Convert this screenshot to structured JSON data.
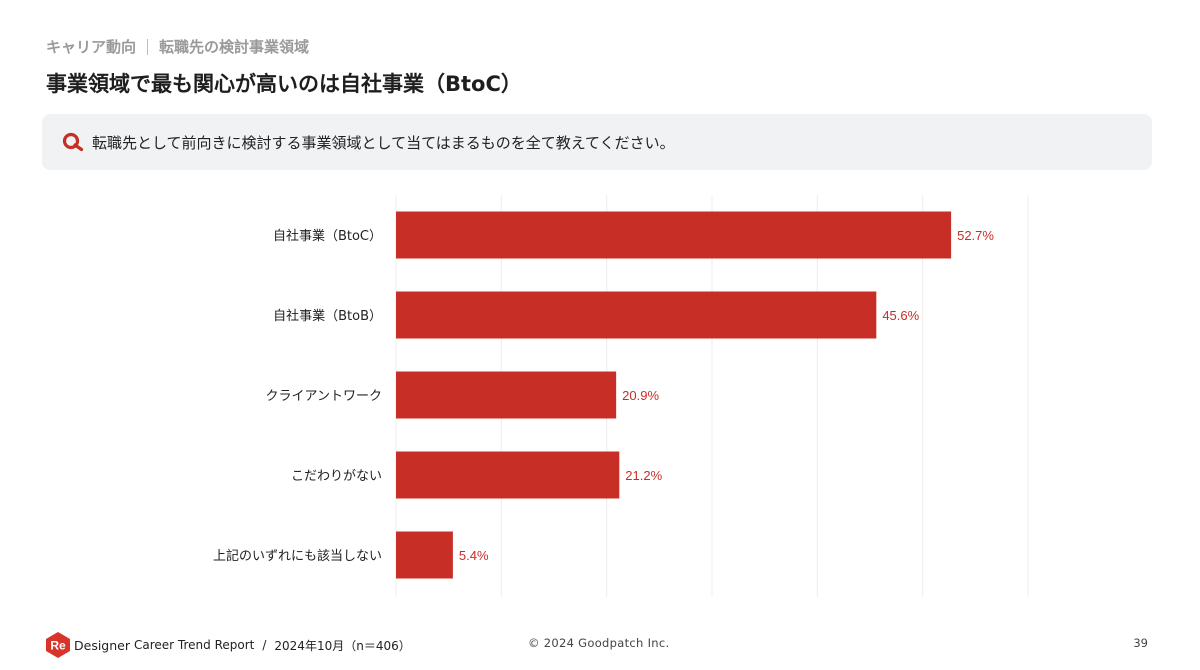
{
  "header": {
    "breadcrumb_section": "キャリア動向",
    "breadcrumb_topic": "転職先の検討事業領域",
    "title": "事業領域で最も関心が高いのは自社事業（BtoC）"
  },
  "question": {
    "text": "転職先として前向きに検討する事業領域として当てはまるものを全て教えてください。"
  },
  "chart_data": {
    "type": "bar",
    "orientation": "horizontal",
    "categories": [
      "自社事業（BtoC）",
      "自社事業（BtoB）",
      "クライアントワーク",
      "こだわりがない",
      "上記のいずれにも該当しない"
    ],
    "values": [
      52.7,
      45.6,
      20.9,
      21.2,
      5.4
    ],
    "value_labels": [
      "52.7%",
      "45.6%",
      "20.9%",
      "21.2%",
      "5.4%"
    ],
    "xlim": [
      0,
      60
    ],
    "grid": true,
    "bar_color": "#c72e26",
    "label_color": "#c72e26",
    "grid_color": "#ececec"
  },
  "footer": {
    "logo_text": "Re",
    "brand": "Designer",
    "report_name": "Career Trend Report",
    "separator": "/",
    "date_sample": "2024年10月（n＝406）",
    "copyright": "© 2024 Goodpatch Inc.",
    "page_number": "39"
  },
  "colors": {
    "accent": "#c72e26",
    "muted_text": "#9a9a9a",
    "question_bg": "#f1f2f4"
  }
}
